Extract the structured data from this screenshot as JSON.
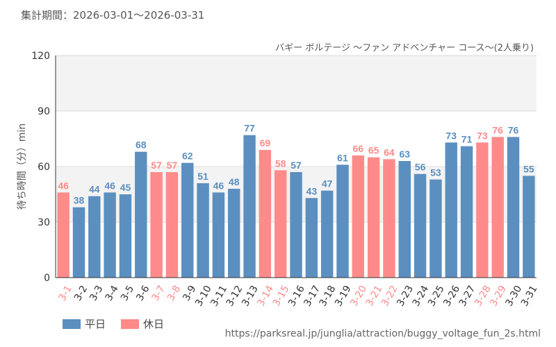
{
  "header": {
    "period": "集計期間：2026-03-01〜2026-03-31"
  },
  "footer": {
    "source_url": "https://parksreal.jp/junglia/attraction/buggy_voltage_fun_2s.html"
  },
  "colors": {
    "weekday": "#5b8fbf",
    "holiday": "#ff8a8a",
    "band": "#f3f3f3",
    "grid": "#dddddd",
    "axis": "#333333"
  },
  "chart_data": {
    "type": "bar",
    "title": "バギー ボルテージ 〜ファン アドベンチャー コース〜(2人乗り)",
    "xlabel": "",
    "ylabel": "待ち時間（分）min",
    "ylim": [
      0,
      120
    ],
    "yticks": [
      0,
      30,
      60,
      90,
      120
    ],
    "categories": [
      "3-1",
      "3-2",
      "3-3",
      "3-4",
      "3-5",
      "3-6",
      "3-7",
      "3-8",
      "3-9",
      "3-10",
      "3-11",
      "3-12",
      "3-13",
      "3-14",
      "3-15",
      "3-16",
      "3-17",
      "3-18",
      "3-19",
      "3-20",
      "3-21",
      "3-22",
      "3-23",
      "3-24",
      "3-25",
      "3-26",
      "3-27",
      "3-28",
      "3-29",
      "3-30",
      "3-31"
    ],
    "values": [
      46,
      38,
      44,
      46,
      45,
      68,
      57,
      57,
      62,
      51,
      46,
      48,
      77,
      69,
      58,
      57,
      43,
      47,
      61,
      66,
      65,
      64,
      63,
      56,
      53,
      73,
      71,
      73,
      76,
      76,
      55
    ],
    "day_type": [
      "holiday",
      "weekday",
      "weekday",
      "weekday",
      "weekday",
      "weekday",
      "holiday",
      "holiday",
      "weekday",
      "weekday",
      "weekday",
      "weekday",
      "weekday",
      "holiday",
      "holiday",
      "weekday",
      "weekday",
      "weekday",
      "weekday",
      "holiday",
      "holiday",
      "holiday",
      "weekday",
      "weekday",
      "weekday",
      "weekday",
      "weekday",
      "holiday",
      "holiday",
      "weekday",
      "weekday"
    ],
    "legend": [
      {
        "key": "weekday",
        "label": "平日"
      },
      {
        "key": "holiday",
        "label": "休日"
      }
    ],
    "legend_position": "bottom-left",
    "grid": true
  }
}
